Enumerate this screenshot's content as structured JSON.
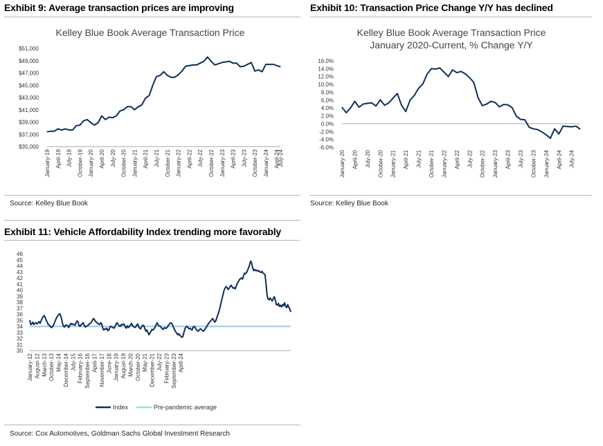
{
  "exhibits": [
    {
      "title": "Exhibit 9: Average transaction prices are improving",
      "source": "Source: Kelley Blue Book"
    },
    {
      "title": "Exhibit 10: Transaction Price Change Y/Y has declined",
      "source": "Source: Kelley Blue Book"
    },
    {
      "title": "Exhibit 11: Vehicle Affordability Index trending more favorably",
      "source": "Source: Cox Automotives, Goldman Sachs Global Investment Research"
    }
  ],
  "colors": {
    "line": "#0b2e5a",
    "average": "#a9d4ee",
    "rule": "#b5b5b5"
  },
  "chart_data": [
    {
      "type": "line",
      "title": "Kelley Blue Book Average Transaction Price",
      "subtitle": "",
      "xlabel": "",
      "ylabel": "",
      "ylim": [
        35000,
        51000
      ],
      "y_tick_labels": [
        "$35,000",
        "$37,000",
        "$39,000",
        "$41,000",
        "$43,000",
        "$45,000",
        "$47,000",
        "$49,000",
        "$51,000"
      ],
      "x_tick_labels": [
        "January-19",
        "April-19",
        "July-19",
        "October-19",
        "January-20",
        "April-20",
        "July-20",
        "October-20",
        "January-21",
        "April-21",
        "July-21",
        "October-21",
        "January-22",
        "April-22",
        "July-22",
        "October-22",
        "January-23",
        "April-23",
        "July-23",
        "October-23",
        "January-24",
        "April-24",
        "July-24"
      ],
      "x_tick_every": 3,
      "grid": false,
      "series": [
        {
          "values": [
            37400,
            37500,
            37500,
            37900,
            37700,
            37900,
            37700,
            37700,
            38400,
            38500,
            39200,
            39400,
            38900,
            38500,
            38900,
            40000,
            39400,
            39800,
            39700,
            40000,
            40800,
            41000,
            41500,
            41500,
            41000,
            41500,
            41800,
            42900,
            43300,
            45000,
            46400,
            46600,
            47200,
            46600,
            46300,
            46300,
            46700,
            47300,
            48100,
            48200,
            48300,
            48300,
            48600,
            48900,
            49600,
            48900,
            48300,
            48500,
            48700,
            48800,
            48900,
            48600,
            48600,
            48000,
            48100,
            48400,
            48700,
            47300,
            47500,
            47200,
            48400,
            48400,
            48400,
            48200,
            48000
          ]
        }
      ]
    },
    {
      "type": "line",
      "title": "Kelley Blue Book Average Transaction Price",
      "subtitle": "January 2020-Current, % Change Y/Y",
      "xlabel": "",
      "ylabel": "",
      "ylim": [
        -6.0,
        16.0
      ],
      "y_tick_labels": [
        "16.0%",
        "14.0%",
        "12.0%",
        "10.0%",
        "8.0%",
        "6.0%",
        "4.0%",
        "2.0%",
        "0.0%",
        "-2.0%",
        "-4.0%",
        "-6.0%"
      ],
      "x_tick_labels": [
        "January-20",
        "April-20",
        "July-20",
        "October-20",
        "January-21",
        "April-21",
        "July-21",
        "October-21",
        "January-22",
        "April-22",
        "July-22",
        "October-22",
        "January-23",
        "April-23",
        "July-23",
        "October-23",
        "January-24",
        "April-24",
        "July-24"
      ],
      "x_tick_every": 3,
      "grid": false,
      "series": [
        {
          "values": [
            4.2,
            2.8,
            4.0,
            5.7,
            4.2,
            5.0,
            5.2,
            5.3,
            4.5,
            6.1,
            4.7,
            5.3,
            6.5,
            7.7,
            4.7,
            3.1,
            6.0,
            7.2,
            9.0,
            10.1,
            12.6,
            14.0,
            13.9,
            14.2,
            13.1,
            12.0,
            13.7,
            13.0,
            13.3,
            12.7,
            11.7,
            10.5,
            6.6,
            4.6,
            5.0,
            5.7,
            5.4,
            4.3,
            4.9,
            4.8,
            4.1,
            1.9,
            1.1,
            1.0,
            -0.9,
            -1.3,
            -1.5,
            -2.1,
            -2.8,
            -3.7,
            -1.3,
            -2.6,
            -0.6,
            -0.7,
            -0.8,
            -0.6,
            -1.4
          ]
        }
      ]
    },
    {
      "type": "line",
      "title": "",
      "subtitle": "",
      "xlabel": "",
      "ylabel": "",
      "ylim": [
        30,
        46
      ],
      "y_tick_labels": [
        "46",
        "45",
        "44",
        "43",
        "42",
        "41",
        "40",
        "39",
        "38",
        "37",
        "36",
        "35",
        "34",
        "33",
        "32",
        "31",
        "30"
      ],
      "x_tick_labels": [
        "January-12",
        "August-12",
        "March-13",
        "October-13",
        "May-14",
        "December-14",
        "July-15",
        "February-16",
        "September-16",
        "April-17",
        "November-17",
        "June-18",
        "January-19",
        "August-19",
        "March-20",
        "October-20",
        "May-21",
        "December-21",
        "July-22",
        "February-23",
        "September-23",
        "April-24"
      ],
      "x_tick_every": 7,
      "grid": false,
      "legend": {
        "position": "bottom",
        "entries": [
          "Index",
          "Pre-pandemic average"
        ]
      },
      "series": [
        {
          "name": "Index",
          "values": [
            35.0,
            34.3,
            34.4,
            34.7,
            34.3,
            34.5,
            34.6,
            34.4,
            34.6,
            34.8,
            34.5,
            34.9,
            35.3,
            35.6,
            35.8,
            35.5,
            35.0,
            34.7,
            34.3,
            34.2,
            34.0,
            33.8,
            33.9,
            34.2,
            34.6,
            35.0,
            35.4,
            35.7,
            35.9,
            36.1,
            35.8,
            35.2,
            34.4,
            34.0,
            33.9,
            34.2,
            34.2,
            34.1,
            33.8,
            34.2,
            34.5,
            34.3,
            34.4,
            34.3,
            34.2,
            34.6,
            34.9,
            34.7,
            34.1,
            34.0,
            34.3,
            34.4,
            34.6,
            34.2,
            33.9,
            34.0,
            34.1,
            34.2,
            34.4,
            34.5,
            34.7,
            35.0,
            35.3,
            35.1,
            34.8,
            34.7,
            34.5,
            34.4,
            34.3,
            34.6,
            34.4,
            33.7,
            33.4,
            33.6,
            33.5,
            33.7,
            33.3,
            33.4,
            33.9,
            34.0,
            33.9,
            33.8,
            33.7,
            34.0,
            34.4,
            34.6,
            34.3,
            34.1,
            34.0,
            34.3,
            34.2,
            34.4,
            34.3,
            33.9,
            33.7,
            34.1,
            33.8,
            34.0,
            34.2,
            34.5,
            34.1,
            34.0,
            33.8,
            33.9,
            34.2,
            34.4,
            33.9,
            33.7,
            33.6,
            34.0,
            34.2,
            34.1,
            33.6,
            33.2,
            33.4,
            33.0,
            32.6,
            32.9,
            33.2,
            33.5,
            33.4,
            33.6,
            33.9,
            34.3,
            34.6,
            34.2,
            34.1,
            34.0,
            33.8,
            33.6,
            33.5,
            33.8,
            33.7,
            33.7,
            33.9,
            34.2,
            34.4,
            34.6,
            34.5,
            34.2,
            33.8,
            33.4,
            33.1,
            32.9,
            32.6,
            32.8,
            32.5,
            32.4,
            32.2,
            32.3,
            33.0,
            33.6,
            33.9,
            34.0,
            33.8,
            33.6,
            33.7,
            33.5,
            33.4,
            33.9,
            34.0,
            33.8,
            33.5,
            33.3,
            33.2,
            33.4,
            33.6,
            33.5,
            33.3,
            33.2,
            33.4,
            33.7,
            33.9,
            34.2,
            34.5,
            34.7,
            34.9,
            35.1,
            35.3,
            35.0,
            34.7,
            34.9,
            35.4,
            35.9,
            36.4,
            37.0,
            37.8,
            38.5,
            39.2,
            39.9,
            40.3,
            40.6,
            40.4,
            40.1,
            40.3,
            40.6,
            40.8,
            40.5,
            40.3,
            40.4,
            40.2,
            40.7,
            41.1,
            41.4,
            41.7,
            41.9,
            42.0,
            41.8,
            42.3,
            42.8,
            42.7,
            42.9,
            43.3,
            43.7,
            44.2,
            44.8,
            44.4,
            43.6,
            43.2,
            43.4,
            43.2,
            43.3,
            43.1,
            43.2,
            43.0,
            42.9,
            43.1,
            42.8,
            42.7,
            42.5,
            40.9,
            39.1,
            38.5,
            38.4,
            38.7,
            38.4,
            38.2,
            38.6,
            38.9,
            38.3,
            37.6,
            37.5,
            37.8,
            37.3,
            37.5,
            37.2,
            37.6,
            37.4,
            37.9,
            37.3,
            37.1,
            37.6,
            37.2,
            36.9,
            36.4
          ]
        },
        {
          "name": "Pre-pandemic average",
          "values": [
            34.0,
            34.0
          ]
        }
      ]
    }
  ]
}
